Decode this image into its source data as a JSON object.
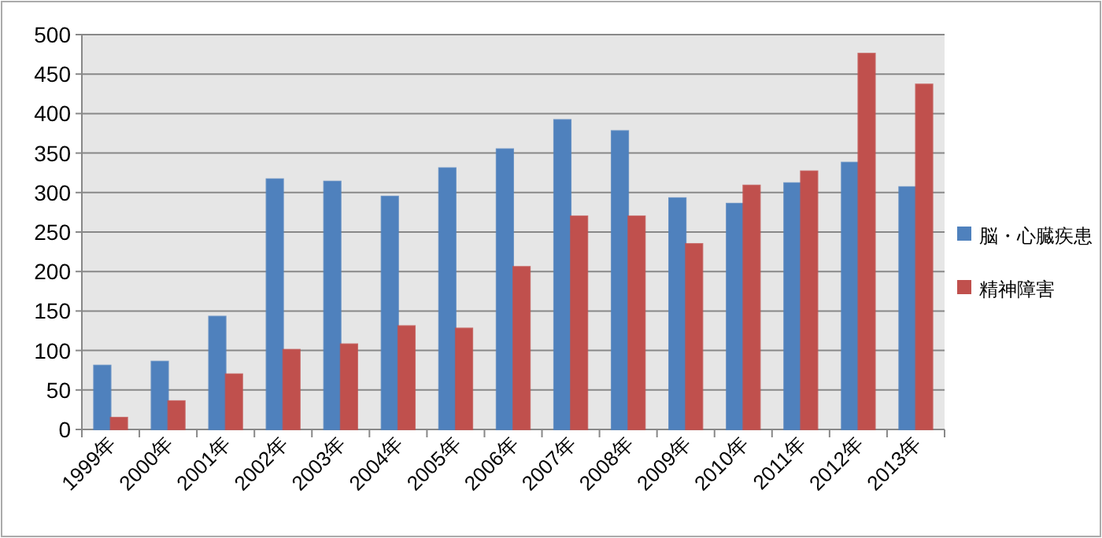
{
  "chart_data": {
    "type": "bar",
    "categories": [
      "1999年",
      "2000年",
      "2001年",
      "2002年",
      "2003年",
      "2004年",
      "2005年",
      "2006年",
      "2007年",
      "2008年",
      "2009年",
      "2010年",
      "2011年",
      "2012年",
      "2013年"
    ],
    "series": [
      {
        "name": "脳・心臓疾患",
        "color": "#4f81bd",
        "values": [
          81,
          86,
          143,
          317,
          314,
          295,
          331,
          355,
          392,
          378,
          293,
          286,
          312,
          338,
          307
        ]
      },
      {
        "name": "精神障害",
        "color": "#c0504d",
        "values": [
          15,
          36,
          70,
          101,
          108,
          131,
          128,
          206,
          270,
          270,
          235,
          309,
          327,
          476,
          437
        ]
      }
    ],
    "ylim": [
      0,
      500
    ],
    "yticks": [
      0,
      50,
      100,
      150,
      200,
      250,
      300,
      350,
      400,
      450,
      500
    ],
    "grid": "y",
    "legend": "right"
  }
}
